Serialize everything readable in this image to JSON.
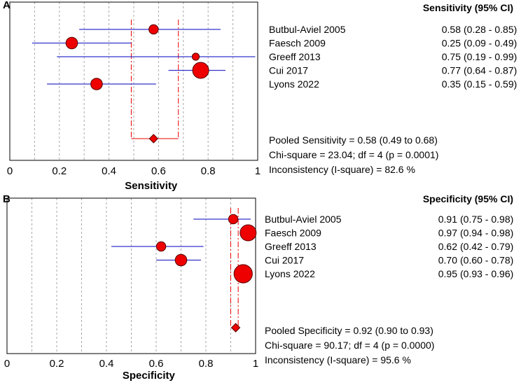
{
  "chart_data": [
    {
      "type": "forest",
      "panel_label": "A",
      "xlabel": "Sensitivity",
      "xlim": [
        0,
        1
      ],
      "x_ticks": [
        "0",
        "0.2",
        "0.4",
        "0.6",
        "0.8",
        "1"
      ],
      "grid": true,
      "column_header": "Sensitivity (95% CI)",
      "studies": [
        {
          "label": "Butbul-Aviel 2005",
          "estimate": 0.58,
          "ci_low": 0.28,
          "ci_high": 0.85,
          "ci_text": "(0.28 - 0.85)",
          "estimate_text": "0.58",
          "weight": 2
        },
        {
          "label": "Faesch 2009",
          "estimate": 0.25,
          "ci_low": 0.09,
          "ci_high": 0.49,
          "ci_text": "(0.09 - 0.49)",
          "estimate_text": "0.25",
          "weight": 3
        },
        {
          "label": "Greeff 2013",
          "estimate": 0.75,
          "ci_low": 0.19,
          "ci_high": 0.99,
          "ci_text": "(0.19 - 0.99)",
          "estimate_text": "0.75",
          "weight": 1
        },
        {
          "label": "Cui 2017",
          "estimate": 0.77,
          "ci_low": 0.64,
          "ci_high": 0.87,
          "ci_text": "(0.64 - 0.87)",
          "estimate_text": "0.77",
          "weight": 5
        },
        {
          "label": "Lyons 2022",
          "estimate": 0.35,
          "ci_low": 0.15,
          "ci_high": 0.59,
          "ci_text": "(0.15 - 0.59)",
          "estimate_text": "0.35",
          "weight": 3
        }
      ],
      "pooled": {
        "estimate": 0.58,
        "ci_low": 0.49,
        "ci_high": 0.68
      },
      "stats": [
        "Pooled Sensitivity = 0.58 (0.49 to 0.68)",
        "Chi-square = 23.04; df =  4 (p = 0.0001)",
        "Inconsistency (I-square) = 82.6 %"
      ]
    },
    {
      "type": "forest",
      "panel_label": "B",
      "xlabel": "Specificity",
      "xlim": [
        0,
        1
      ],
      "x_ticks": [
        "0",
        "0.2",
        "0.4",
        "0.6",
        "0.8",
        "1"
      ],
      "grid": true,
      "column_header": "Specificity (95% CI)",
      "studies": [
        {
          "label": "Butbul-Aviel 2005",
          "estimate": 0.91,
          "ci_low": 0.75,
          "ci_high": 0.98,
          "ci_text": "(0.75 - 0.98)",
          "estimate_text": "0.91",
          "weight": 2
        },
        {
          "label": "Faesch 2009",
          "estimate": 0.97,
          "ci_low": 0.94,
          "ci_high": 0.98,
          "ci_text": "(0.94 - 0.98)",
          "estimate_text": "0.97",
          "weight": 5
        },
        {
          "label": "Greeff 2013",
          "estimate": 0.62,
          "ci_low": 0.42,
          "ci_high": 0.79,
          "ci_text": "(0.42 - 0.79)",
          "estimate_text": "0.62",
          "weight": 2
        },
        {
          "label": "Cui 2017",
          "estimate": 0.7,
          "ci_low": 0.6,
          "ci_high": 0.78,
          "ci_text": "(0.60 - 0.78)",
          "estimate_text": "0.70",
          "weight": 3
        },
        {
          "label": "Lyons 2022",
          "estimate": 0.95,
          "ci_low": 0.93,
          "ci_high": 0.96,
          "ci_text": "(0.93 - 0.96)",
          "estimate_text": "0.95",
          "weight": 6
        }
      ],
      "pooled": {
        "estimate": 0.92,
        "ci_low": 0.9,
        "ci_high": 0.93
      },
      "stats": [
        "Pooled Specificity = 0.92 (0.90 to 0.93)",
        "Chi-square = 90.17; df =  4 (p = 0.0000)",
        "Inconsistency (I-square) = 95.6 %"
      ]
    }
  ],
  "colors": {
    "ci_line": "#3333cc",
    "point_fill": "#ee0000",
    "pooled_line": "#ee0000",
    "grid": "#a8a8a8",
    "frame": "#000000"
  }
}
